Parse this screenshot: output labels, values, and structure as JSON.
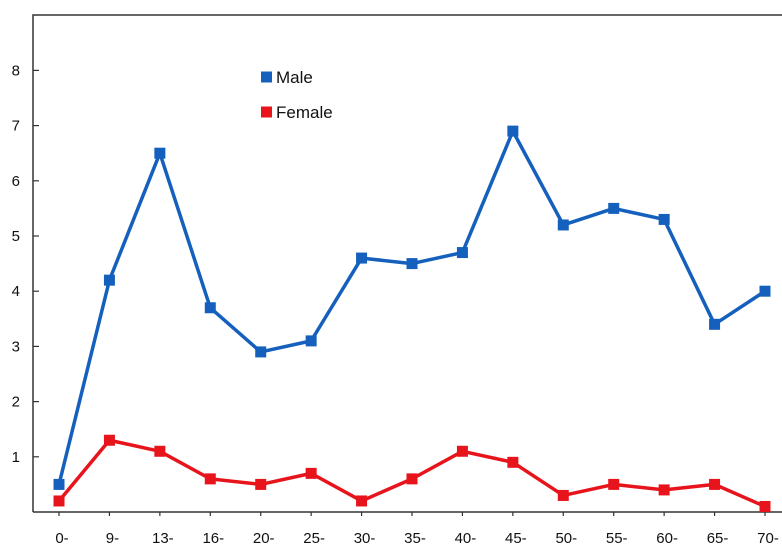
{
  "chart_data": {
    "type": "line",
    "title": "",
    "xlabel": "",
    "ylabel": "",
    "categories": [
      "0-",
      "9-",
      "13-",
      "16-",
      "20-",
      "25-",
      "30-",
      "35-",
      "40-",
      "45-",
      "50-",
      "55-",
      "60-",
      "65-",
      "70-"
    ],
    "ylim": [
      0,
      9
    ],
    "yticks": [
      1,
      2,
      3,
      4,
      5,
      6,
      7,
      8
    ],
    "grid": false,
    "legend_position": "top-left",
    "series": [
      {
        "name": "Male",
        "color": "#1560bd",
        "values": [
          0.5,
          4.2,
          6.5,
          3.7,
          2.9,
          3.1,
          4.6,
          4.5,
          4.7,
          6.9,
          5.2,
          5.5,
          5.3,
          3.4,
          4.0
        ]
      },
      {
        "name": "Female",
        "color": "#e8141c",
        "values": [
          0.2,
          1.3,
          1.1,
          0.6,
          0.5,
          0.7,
          0.2,
          0.6,
          1.1,
          0.9,
          0.3,
          0.5,
          0.4,
          0.5,
          0.1
        ]
      }
    ]
  }
}
